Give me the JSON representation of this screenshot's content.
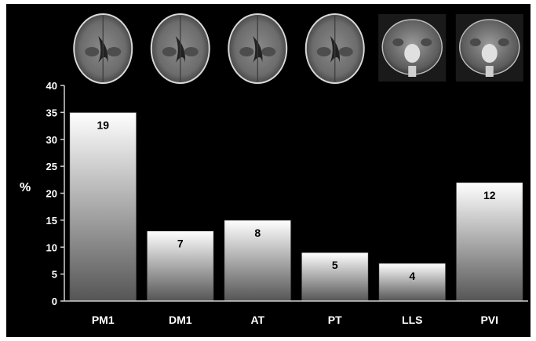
{
  "chart_data": {
    "type": "bar",
    "title": "",
    "xlabel": "",
    "ylabel": "%",
    "ylim": [
      0,
      40
    ],
    "yticks": [
      0,
      5,
      10,
      15,
      20,
      25,
      30,
      35,
      40
    ],
    "categories": [
      "PM1",
      "DM1",
      "AT",
      "PT",
      "LLS",
      "PVI"
    ],
    "values": [
      35,
      13,
      15,
      9,
      7,
      22
    ],
    "data_labels": [
      "19",
      "7",
      "8",
      "5",
      "4",
      "12"
    ],
    "thumbnails": [
      {
        "category": "PM1",
        "view": "axial brain MRI"
      },
      {
        "category": "DM1",
        "view": "axial brain MRI"
      },
      {
        "category": "AT",
        "view": "axial brain MRI"
      },
      {
        "category": "PT",
        "view": "axial brain MRI"
      },
      {
        "category": "LLS",
        "view": "coronal brain MRI"
      },
      {
        "category": "PVI",
        "view": "coronal brain MRI"
      }
    ],
    "colors": {
      "background": "#000000",
      "bar_top": "#ffffff",
      "bar_bottom": "#5a5a5a",
      "axis": "#cfcfcf",
      "text": "#ffffff",
      "label": "#000000"
    },
    "grid": false,
    "legend": "none"
  }
}
